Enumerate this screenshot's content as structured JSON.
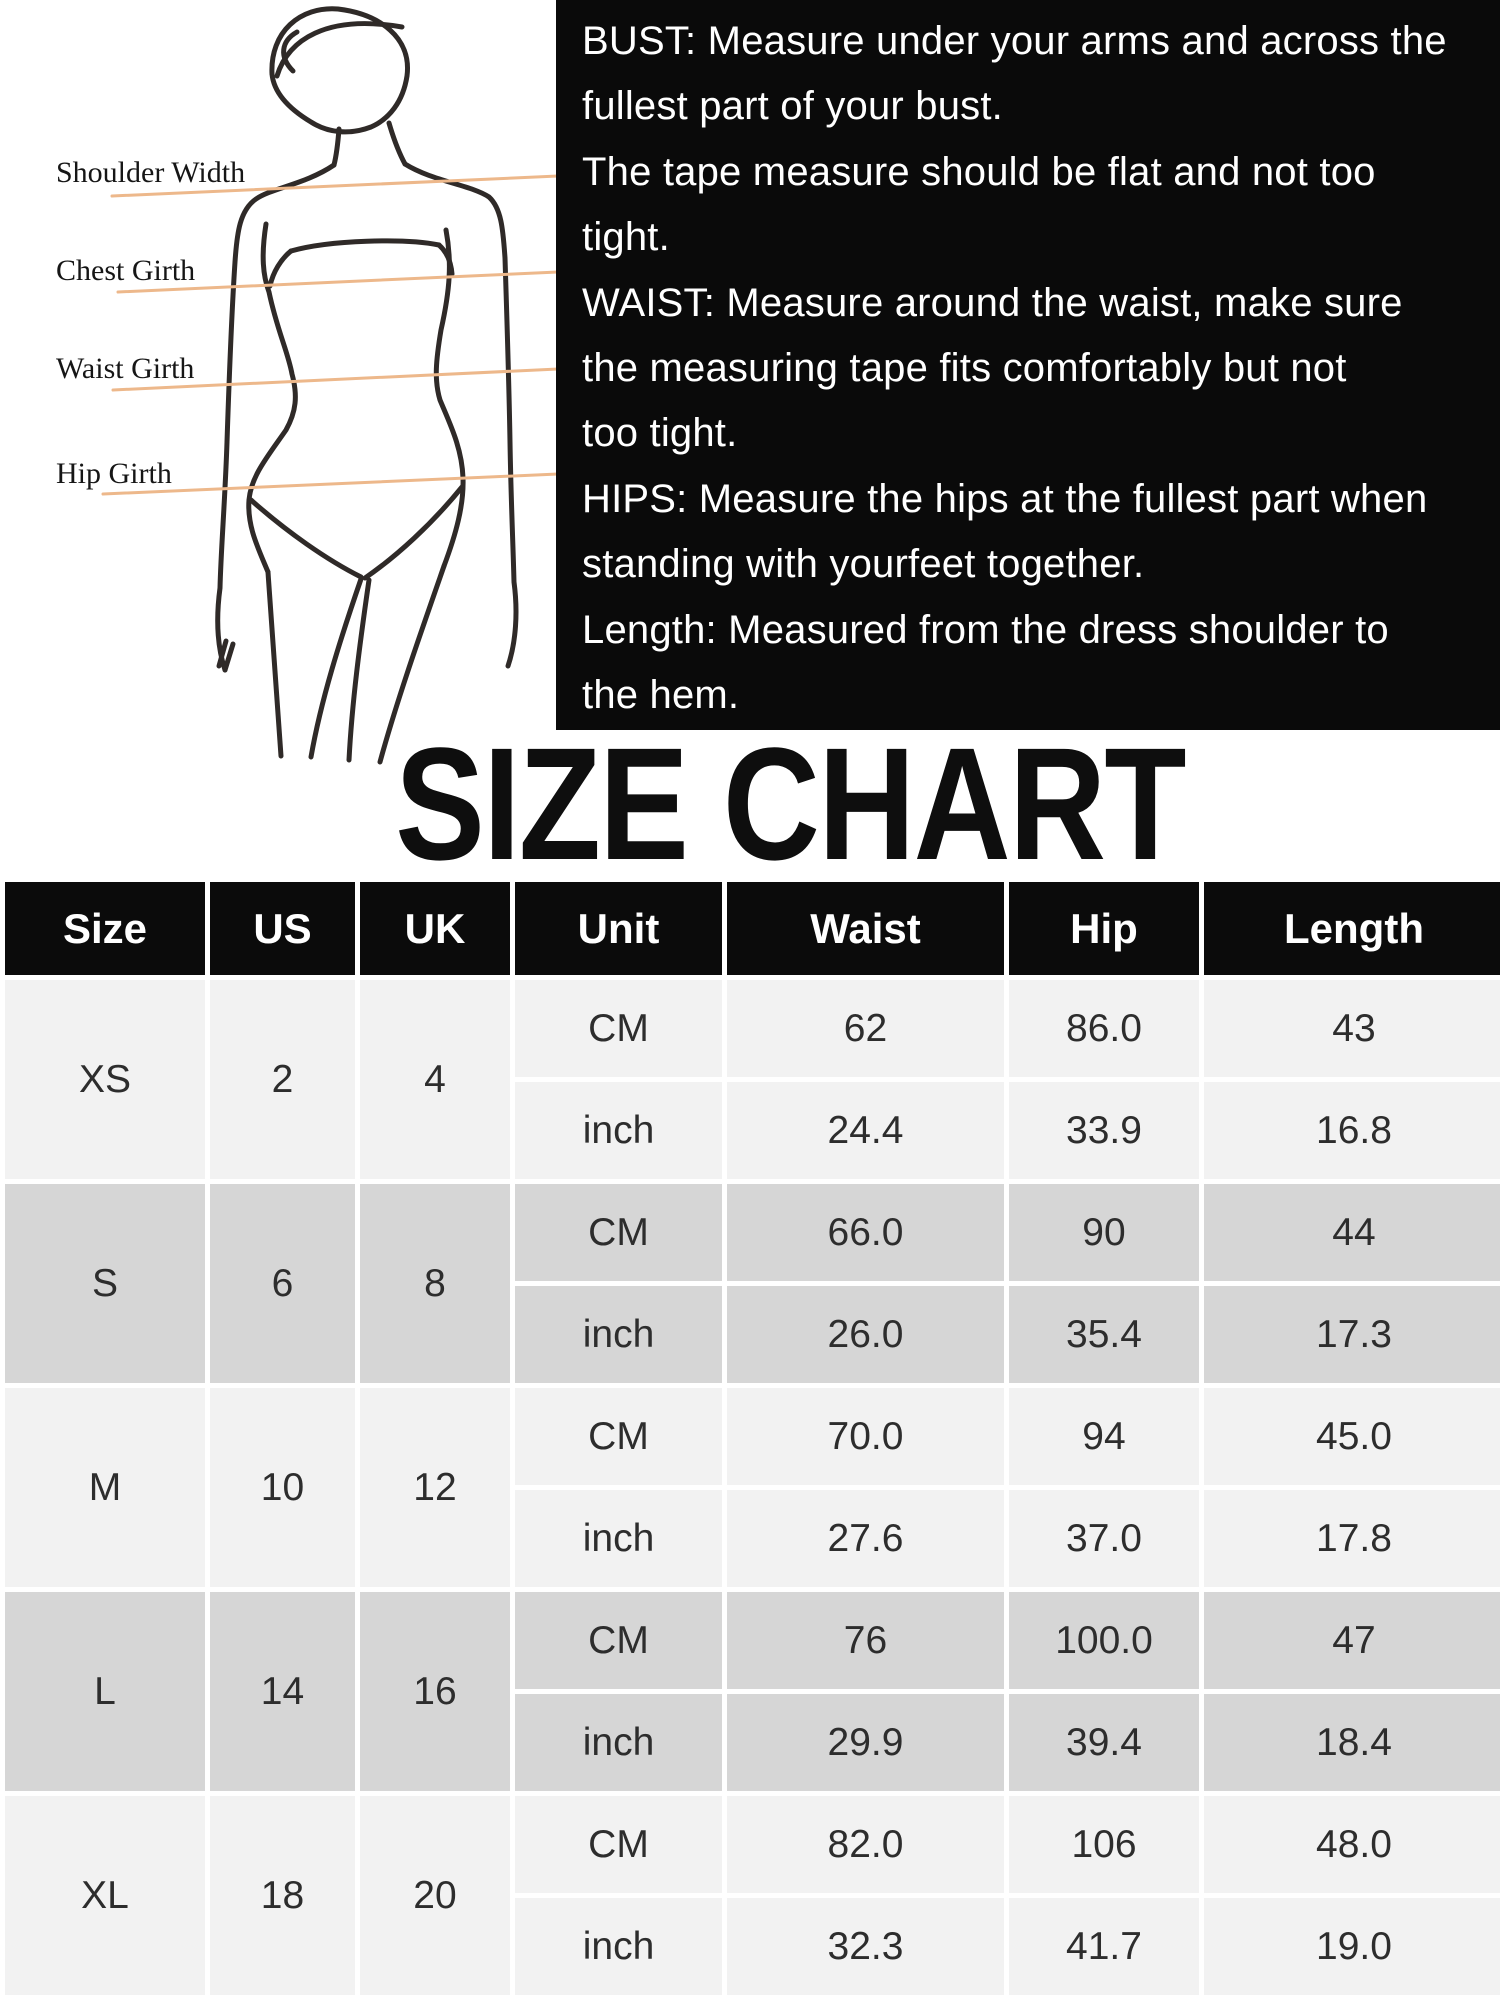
{
  "title": "SIZE CHART",
  "diagram": {
    "labels": [
      {
        "text": "Shoulder Width"
      },
      {
        "text": "Chest Girth"
      },
      {
        "text": "Waist Girth"
      },
      {
        "text": "Hip Girth"
      }
    ]
  },
  "instructions": {
    "lines": [
      "BUST: Measure under your arms and across the",
      "fullest part of your bust.",
      "The tape measure should be flat and not too",
      "tight.",
      "WAIST: Measure around the waist, make sure",
      "the measuring tape fits comfortably but not",
      "too tight.",
      "HIPS: Measure the hips at the fullest part when",
      "standing with yourfeet together.",
      "Length: Measured from the dress shoulder to",
      "the hem."
    ]
  },
  "size_table": {
    "headers": [
      "Size",
      "US",
      "UK",
      "Unit",
      "Waist",
      "Hip",
      "Length"
    ],
    "groups": [
      {
        "size": "XS",
        "us": "2",
        "uk": "4",
        "rows": [
          {
            "unit": "CM",
            "waist": "62",
            "hip": "86.0",
            "length": "43"
          },
          {
            "unit": "inch",
            "waist": "24.4",
            "hip": "33.9",
            "length": "16.8"
          }
        ]
      },
      {
        "size": "S",
        "us": "6",
        "uk": "8",
        "rows": [
          {
            "unit": "CM",
            "waist": "66.0",
            "hip": "90",
            "length": "44"
          },
          {
            "unit": "inch",
            "waist": "26.0",
            "hip": "35.4",
            "length": "17.3"
          }
        ]
      },
      {
        "size": "M",
        "us": "10",
        "uk": "12",
        "rows": [
          {
            "unit": "CM",
            "waist": "70.0",
            "hip": "94",
            "length": "45.0"
          },
          {
            "unit": "inch",
            "waist": "27.6",
            "hip": "37.0",
            "length": "17.8"
          }
        ]
      },
      {
        "size": "L",
        "us": "14",
        "uk": "16",
        "rows": [
          {
            "unit": "CM",
            "waist": "76",
            "hip": "100.0",
            "length": "47"
          },
          {
            "unit": "inch",
            "waist": "29.9",
            "hip": "39.4",
            "length": "18.4"
          }
        ]
      },
      {
        "size": "XL",
        "us": "18",
        "uk": "20",
        "rows": [
          {
            "unit": "CM",
            "waist": "82.0",
            "hip": "106",
            "length": "48.0"
          },
          {
            "unit": "inch",
            "waist": "32.3",
            "hip": "41.7",
            "length": "19.0"
          }
        ]
      }
    ]
  },
  "colors": {
    "measure_line": "#edb88b",
    "figure_stroke": "#2f2a28",
    "panel_bg": "#0a0a0a",
    "header_bg": "#0b0b0b",
    "row_light": "#f2f2f2",
    "row_dark": "#d6d6d6"
  }
}
